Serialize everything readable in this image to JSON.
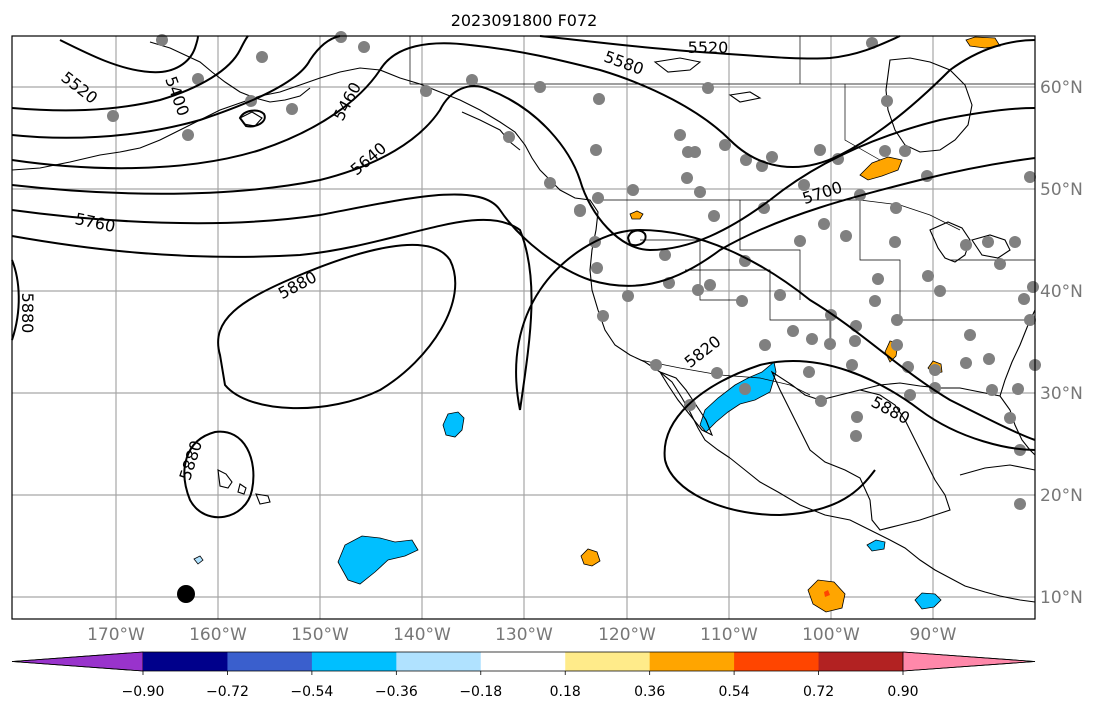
{
  "title": "2023091800 F072",
  "colors": {
    "grid": "#a6a6a6",
    "tick_label": "#777777",
    "station": "#808080",
    "contour": "#000000"
  },
  "lon_ticks": [
    "170°W",
    "160°W",
    "150°W",
    "140°W",
    "130°W",
    "120°W",
    "110°W",
    "100°W",
    "90°W"
  ],
  "lat_ticks": [
    "60°N",
    "50°N",
    "40°N",
    "30°N",
    "20°N",
    "10°N"
  ],
  "contour_labels": [
    "5520",
    "5580",
    "5460",
    "5400",
    "5520",
    "5640",
    "5700",
    "5760",
    "5880",
    "5880",
    "5820",
    "5880",
    "5880"
  ],
  "colorbar": {
    "tick_labels": [
      "−0.90",
      "−0.72",
      "−0.54",
      "−0.36",
      "−0.18",
      "0.18",
      "0.36",
      "0.54",
      "0.72",
      "0.90"
    ],
    "colors": [
      "#9933cc",
      "#00008b",
      "#3a5fcd",
      "#00bfff",
      "#b0e2ff",
      "#ffffff",
      "#ffeb8a",
      "#ffa500",
      "#ff4500",
      "#b22222",
      "#ff88aa"
    ]
  },
  "anomaly_blobs": [
    {
      "kind": "negative",
      "color": "#00bfff"
    },
    {
      "kind": "positive",
      "color": "#ffa500"
    }
  ]
}
